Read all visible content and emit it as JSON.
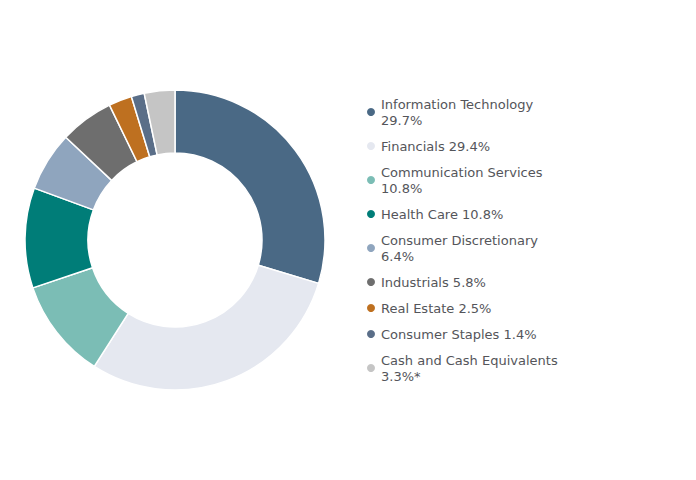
{
  "chart_data": {
    "type": "pie",
    "categories": [
      "Information Technology\n29.7%",
      "Financials 29.4%",
      "Communication Services\n10.8%",
      "Health Care 10.8%",
      "Consumer Discretionary\n6.4%",
      "Industrials 5.8%",
      "Real Estate 2.5%",
      "Consumer Staples 1.4%",
      "Cash and Cash Equivalents\n3.3%*"
    ],
    "values": [
      29.7,
      29.4,
      10.8,
      10.8,
      6.4,
      5.8,
      2.5,
      1.4,
      3.3
    ],
    "colors": [
      "#4a6985",
      "#e5e8f0",
      "#7bbdb5",
      "#007d78",
      "#8fa5be",
      "#6e6e6e",
      "#be7020",
      "#5a6e88",
      "#c5c5c5"
    ],
    "legend": "right"
  }
}
